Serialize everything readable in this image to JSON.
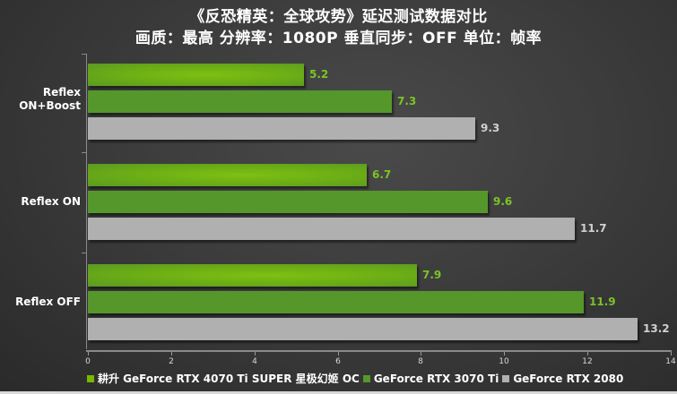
{
  "title": {
    "line1": "《反恐精英：全球攻势》延迟测试数据对比",
    "line2": "画质：最高 分辨率：1080P 垂直同步：OFF 单位：帧率"
  },
  "chart_data": {
    "type": "bar",
    "orientation": "horizontal",
    "title": "《反恐精英：全球攻势》延迟测试数据对比",
    "subtitle": "画质：最高 分辨率：1080P 垂直同步：OFF 单位：帧率",
    "categories": [
      "Reflex\nON+Boost",
      "Reflex ON",
      "Reflex OFF"
    ],
    "series": [
      {
        "name": "耕升 GeForce RTX 4070 Ti SUPER 星极幻姬 OC",
        "color": "#76b900",
        "values": [
          5.2,
          6.7,
          7.9
        ]
      },
      {
        "name": "GeForce RTX 3070 Ti",
        "color": "#56972c",
        "values": [
          7.3,
          9.6,
          11.9
        ]
      },
      {
        "name": "GeForce RTX 2080",
        "color": "#b0b0b0",
        "values": [
          9.3,
          11.7,
          13.2
        ]
      }
    ],
    "xlabel": "",
    "ylabel": "",
    "xlim": [
      0,
      14
    ],
    "xticks": [
      "0",
      "2",
      "4",
      "6",
      "8",
      "10",
      "12",
      "14"
    ],
    "grid": false,
    "legend_position": "bottom"
  },
  "labels": {
    "c0": "Reflex\nON+Boost",
    "c1": "Reflex ON",
    "c2": "Reflex OFF",
    "v00": "5.2",
    "v01": "7.3",
    "v02": "9.3",
    "v10": "6.7",
    "v11": "9.6",
    "v12": "11.7",
    "v20": "7.9",
    "v21": "11.9",
    "v22": "13.2"
  },
  "legend": {
    "s0": "耕升 GeForce RTX 4070 Ti SUPER 星极幻姬 OC",
    "s1": "GeForce RTX 3070 Ti",
    "s2": "GeForce RTX 2080"
  },
  "colors": {
    "s0": "#76b900",
    "s1": "#56972c",
    "s2": "#b0b0b0"
  }
}
